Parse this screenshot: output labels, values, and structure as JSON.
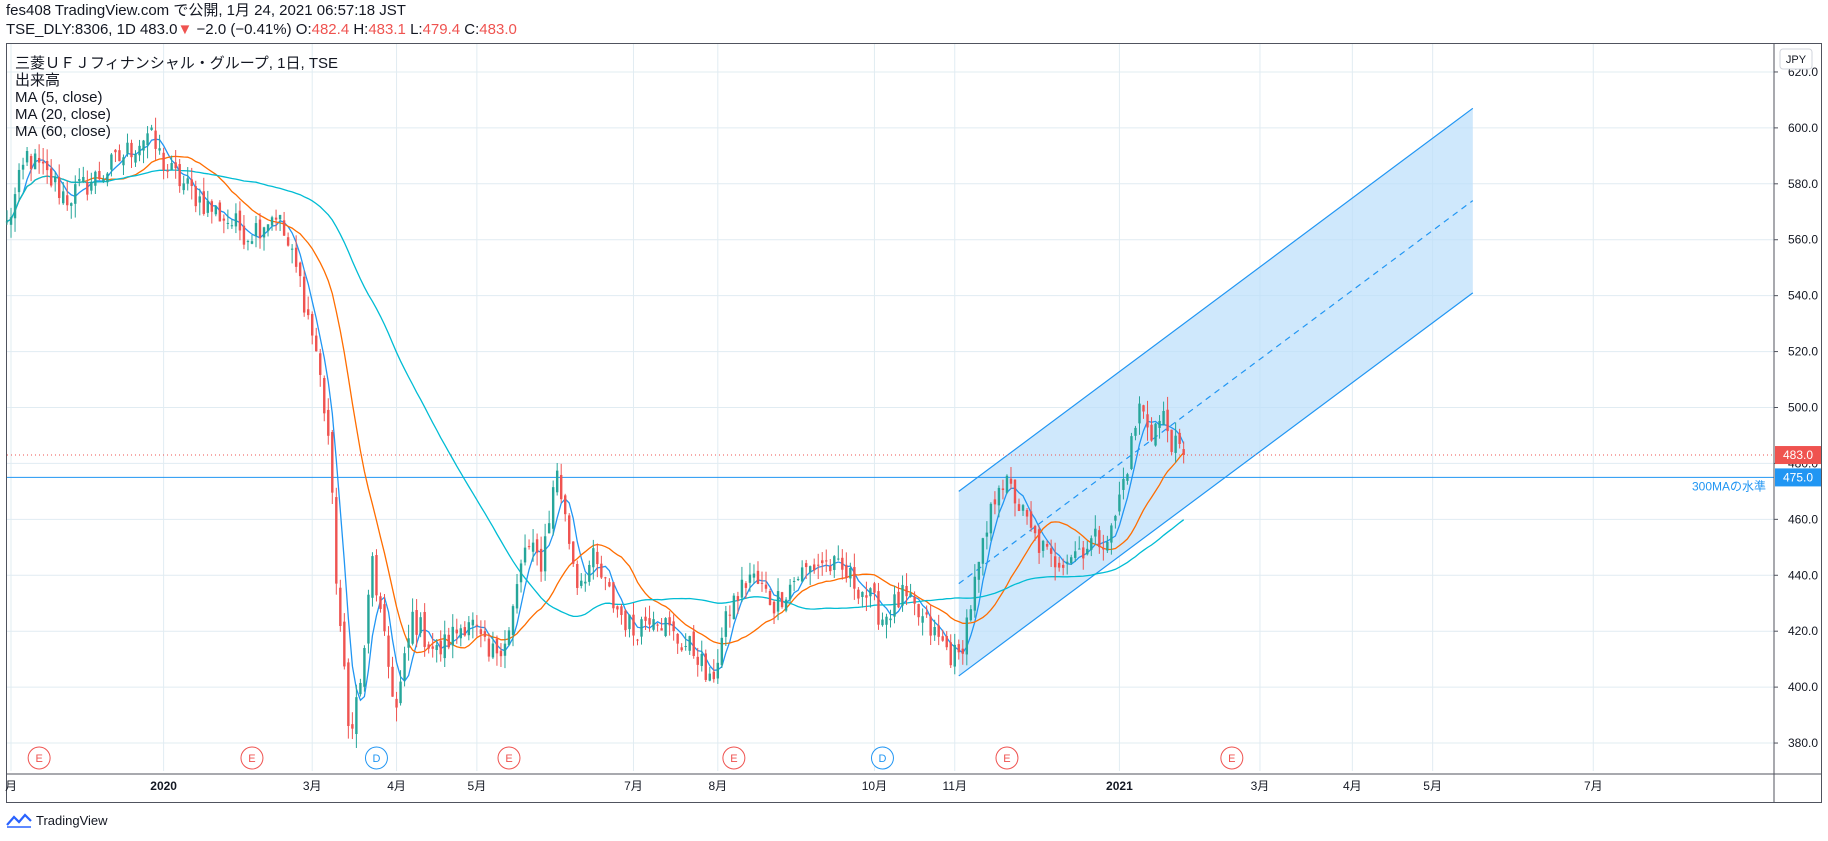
{
  "header": {
    "publish_line": "fes408 TradingView.com で公開, 1月 24, 2021 06:57:18 JST",
    "symbol_line": "TSE_DLY:8306, 1D 483.0",
    "change_arrow": "▼",
    "change": "−2.0 (−0.41%)",
    "o_label": "O:",
    "o_value": "482.4",
    "h_label": "H:",
    "h_value": "483.1",
    "l_label": "L:",
    "l_value": "479.4",
    "c_label": "C:",
    "c_value": "483.0"
  },
  "legend": {
    "title": "三菱ＵＦＪフィナンシャル・グループ, 1日, TSE",
    "volume": "出来高",
    "ma5": "MA (5, close)",
    "ma20": "MA (20, close)",
    "ma60": "MA (60, close)"
  },
  "footer": {
    "brand": "TradingView"
  },
  "colors": {
    "up": "#26a69a",
    "down": "#ef5350",
    "ma5": "#2196f3",
    "ma20": "#ff6d00",
    "ma60": "#00bcd4",
    "channel": "#2196f3",
    "channel_fill": "#bbdefb",
    "grid": "#e1ecf2",
    "text": "#131722",
    "earnings": "#ef5350",
    "dividend": "#2196f3"
  },
  "chart_data": {
    "type": "candlestick",
    "currency": "JPY",
    "ylim": [
      370,
      630
    ],
    "y_ticks": [
      380,
      400,
      420,
      440,
      460,
      480,
      500,
      520,
      540,
      560,
      580,
      600,
      620
    ],
    "y_tick_labels": [
      "380.0",
      "400.0",
      "420.0",
      "440.0",
      "460.0",
      "480.0",
      "500.0",
      "520.0",
      "540.0",
      "560.0",
      "580.0",
      "600.0",
      "620.0"
    ],
    "grid": true,
    "x_ticks": [
      {
        "label": "月",
        "bar": -124
      },
      {
        "label": "2020",
        "bar": -86
      },
      {
        "label": "3月",
        "bar": -49
      },
      {
        "label": "4月",
        "bar": -28
      },
      {
        "label": "5月",
        "bar": -8
      },
      {
        "label": "7月",
        "bar": 31
      },
      {
        "label": "8月",
        "bar": 52
      },
      {
        "label": "10月",
        "bar": 91
      },
      {
        "label": "11月",
        "bar": 111
      },
      {
        "label": "2021",
        "bar": 152
      },
      {
        "label": "3月",
        "bar": 187
      },
      {
        "label": "4月",
        "bar": 210
      },
      {
        "label": "5月",
        "bar": 230
      },
      {
        "label": "7月",
        "bar": 270
      }
    ],
    "x_range": [
      -125,
      315
    ],
    "last_bar": 168,
    "anchors": [
      {
        "bar": -125,
        "close": 565
      },
      {
        "bar": -120,
        "close": 590
      },
      {
        "bar": -110,
        "close": 575
      },
      {
        "bar": -100,
        "close": 585
      },
      {
        "bar": -90,
        "close": 598
      },
      {
        "bar": -85,
        "close": 585
      },
      {
        "bar": -75,
        "close": 572
      },
      {
        "bar": -65,
        "close": 562
      },
      {
        "bar": -58,
        "close": 570
      },
      {
        "bar": -52,
        "close": 545
      },
      {
        "bar": -48,
        "close": 520
      },
      {
        "bar": -45,
        "close": 490
      },
      {
        "bar": -43,
        "close": 440
      },
      {
        "bar": -40,
        "close": 385
      },
      {
        "bar": -37,
        "close": 400
      },
      {
        "bar": -34,
        "close": 445
      },
      {
        "bar": -31,
        "close": 415
      },
      {
        "bar": -28,
        "close": 392
      },
      {
        "bar": -24,
        "close": 425
      },
      {
        "bar": -18,
        "close": 412
      },
      {
        "bar": -10,
        "close": 425
      },
      {
        "bar": -5,
        "close": 410
      },
      {
        "bar": 0,
        "close": 420
      },
      {
        "bar": 4,
        "close": 450
      },
      {
        "bar": 8,
        "close": 445
      },
      {
        "bar": 12,
        "close": 478
      },
      {
        "bar": 14,
        "close": 460
      },
      {
        "bar": 17,
        "close": 438
      },
      {
        "bar": 21,
        "close": 445
      },
      {
        "bar": 26,
        "close": 430
      },
      {
        "bar": 31,
        "close": 420
      },
      {
        "bar": 36,
        "close": 428
      },
      {
        "bar": 41,
        "close": 418
      },
      {
        "bar": 47,
        "close": 412
      },
      {
        "bar": 50,
        "close": 400
      },
      {
        "bar": 55,
        "close": 428
      },
      {
        "bar": 60,
        "close": 440
      },
      {
        "bar": 66,
        "close": 430
      },
      {
        "bar": 72,
        "close": 440
      },
      {
        "bar": 78,
        "close": 445
      },
      {
        "bar": 84,
        "close": 440
      },
      {
        "bar": 88,
        "close": 435
      },
      {
        "bar": 93,
        "close": 425
      },
      {
        "bar": 98,
        "close": 432
      },
      {
        "bar": 104,
        "close": 422
      },
      {
        "bar": 110,
        "close": 412
      },
      {
        "bar": 112,
        "close": 410
      },
      {
        "bar": 115,
        "close": 430
      },
      {
        "bar": 119,
        "close": 455
      },
      {
        "bar": 122,
        "close": 475
      },
      {
        "bar": 126,
        "close": 468
      },
      {
        "bar": 130,
        "close": 455
      },
      {
        "bar": 135,
        "close": 445
      },
      {
        "bar": 140,
        "close": 448
      },
      {
        "bar": 145,
        "close": 452
      },
      {
        "bar": 150,
        "close": 455
      },
      {
        "bar": 154,
        "close": 480
      },
      {
        "bar": 157,
        "close": 500
      },
      {
        "bar": 160,
        "close": 492
      },
      {
        "bar": 163,
        "close": 496
      },
      {
        "bar": 166,
        "close": 485
      },
      {
        "bar": 168,
        "close": 483
      }
    ],
    "moving_averages": [
      {
        "name": "MA (5, close)",
        "period": 5,
        "color": "#2196f3"
      },
      {
        "name": "MA (20, close)",
        "period": 20,
        "color": "#ff6d00"
      },
      {
        "name": "MA (60, close)",
        "period": 60,
        "color": "#00bcd4"
      }
    ],
    "price_labels": [
      {
        "value": 483.0,
        "label": "483.0",
        "color": "#ef5350"
      },
      {
        "value": 475.0,
        "label": "475.0",
        "color": "#2196f3"
      }
    ],
    "horizontal_line": {
      "value": 475,
      "label": "300MAの水準"
    },
    "channel": {
      "start_bar": 112,
      "end_bar": 240,
      "start_mid": 437,
      "end_mid": 574,
      "start_upper": 470,
      "end_upper": 607,
      "start_lower": 404,
      "end_lower": 541
    },
    "events": [
      {
        "bar": -117,
        "label": "E",
        "kind": "earnings"
      },
      {
        "bar": -64,
        "label": "E",
        "kind": "earnings"
      },
      {
        "bar": -33,
        "label": "D",
        "kind": "dividend"
      },
      {
        "bar": 0,
        "label": "E",
        "kind": "earnings"
      },
      {
        "bar": 56,
        "label": "E",
        "kind": "earnings"
      },
      {
        "bar": 93,
        "label": "D",
        "kind": "dividend"
      },
      {
        "bar": 124,
        "label": "E",
        "kind": "earnings"
      },
      {
        "bar": 180,
        "label": "E",
        "kind": "earnings"
      }
    ]
  }
}
